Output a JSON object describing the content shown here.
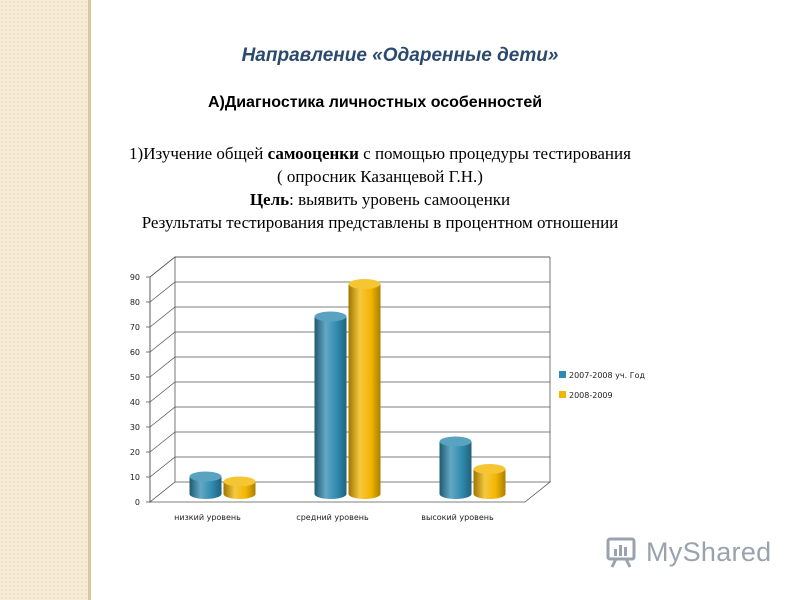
{
  "slide": {
    "heading": "Направление «Одаренные дети»",
    "subheading": "А)Диагностика личностных особенностей",
    "line1_pre": "1)Изучение  общей ",
    "line1_bold": "самооценки",
    "line1_post": " с помощью процедуры тестирования",
    "line2": "( опросник Казанцевой Г.Н.)",
    "line3_bold": "Цель",
    "line3_post": ": выявить уровень самооценки",
    "line4": "Результаты тестирования представлены в процентном отношении"
  },
  "chart_data": {
    "type": "bar",
    "categories": [
      "низкий уровень",
      "средний уровень",
      "высокий уровень"
    ],
    "series": [
      {
        "name": "2007-2008 уч. Год",
        "values": [
          7,
          71,
          21
        ],
        "color": "#2f8bb0"
      },
      {
        "name": "2008-2009",
        "values": [
          5,
          84,
          10
        ],
        "color": "#f2b600"
      }
    ],
    "ylim": [
      0,
      90
    ],
    "yticks": [
      "0",
      "10",
      "20",
      "30",
      "40",
      "50",
      "60",
      "70",
      "80",
      "90"
    ],
    "grid": true,
    "legend": "right",
    "title": "",
    "xlabel": "",
    "ylabel": ""
  },
  "watermark": {
    "text": "MyShared",
    "icon": "myshared-logo-icon"
  }
}
